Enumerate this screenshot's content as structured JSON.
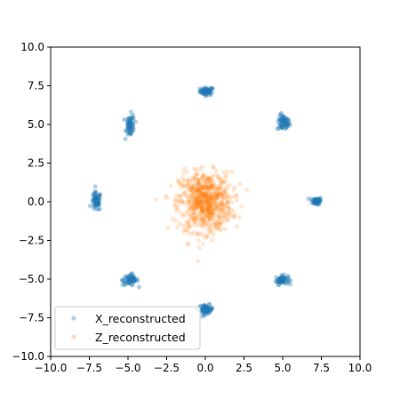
{
  "chart_data": {
    "type": "scatter",
    "title": "",
    "xlabel": "",
    "ylabel": "",
    "xlim": [
      -10,
      10
    ],
    "ylim": [
      -10,
      10
    ],
    "xticks": [
      -10,
      -7.5,
      -5,
      -2.5,
      0,
      2.5,
      5,
      7.5,
      10
    ],
    "yticks": [
      -10,
      -7.5,
      -5,
      -2.5,
      0,
      2.5,
      5,
      7.5,
      10
    ],
    "xtick_labels": [
      "−10.0",
      "−7.5",
      "−5.0",
      "−2.5",
      "0.0",
      "2.5",
      "5.0",
      "7.5",
      "10.0"
    ],
    "ytick_labels": [
      "−10.0",
      "−7.5",
      "−5.0",
      "−2.5",
      "0.0",
      "2.5",
      "5.0",
      "7.5",
      "10.0"
    ],
    "grid": false,
    "legend_position": "lower-left",
    "series": [
      {
        "name": "X_reconstructed",
        "color": "#1f77b4",
        "alpha": 0.35,
        "marker": "circle",
        "clusters": [
          {
            "center": [
              0.1,
              7.15
            ],
            "spread": [
              0.22,
              0.12
            ],
            "n": 60
          },
          {
            "center": [
              5.05,
              5.1
            ],
            "spread": [
              0.2,
              0.25
            ],
            "n": 60
          },
          {
            "center": [
              7.2,
              0.05
            ],
            "spread": [
              0.15,
              0.12
            ],
            "n": 60
          },
          {
            "center": [
              4.95,
              -5.05
            ],
            "spread": [
              0.2,
              0.14
            ],
            "n": 60
          },
          {
            "center": [
              0.05,
              -6.95
            ],
            "spread": [
              0.22,
              0.14
            ],
            "n": 60
          },
          {
            "center": [
              -4.85,
              -5.05
            ],
            "spread": [
              0.25,
              0.18
            ],
            "n": 60
          },
          {
            "center": [
              -7.05,
              0.0
            ],
            "spread": [
              0.15,
              0.3
            ],
            "n": 60
          },
          {
            "center": [
              -4.85,
              4.95
            ],
            "spread": [
              0.14,
              0.35
            ],
            "n": 60
          }
        ]
      },
      {
        "name": "Z_reconstructed",
        "color": "#ff7f0e",
        "alpha": 0.18,
        "marker": "circle",
        "clusters": [
          {
            "center": [
              0.0,
              0.0
            ],
            "spread": [
              0.85,
              0.95
            ],
            "n": 700
          }
        ]
      }
    ]
  }
}
